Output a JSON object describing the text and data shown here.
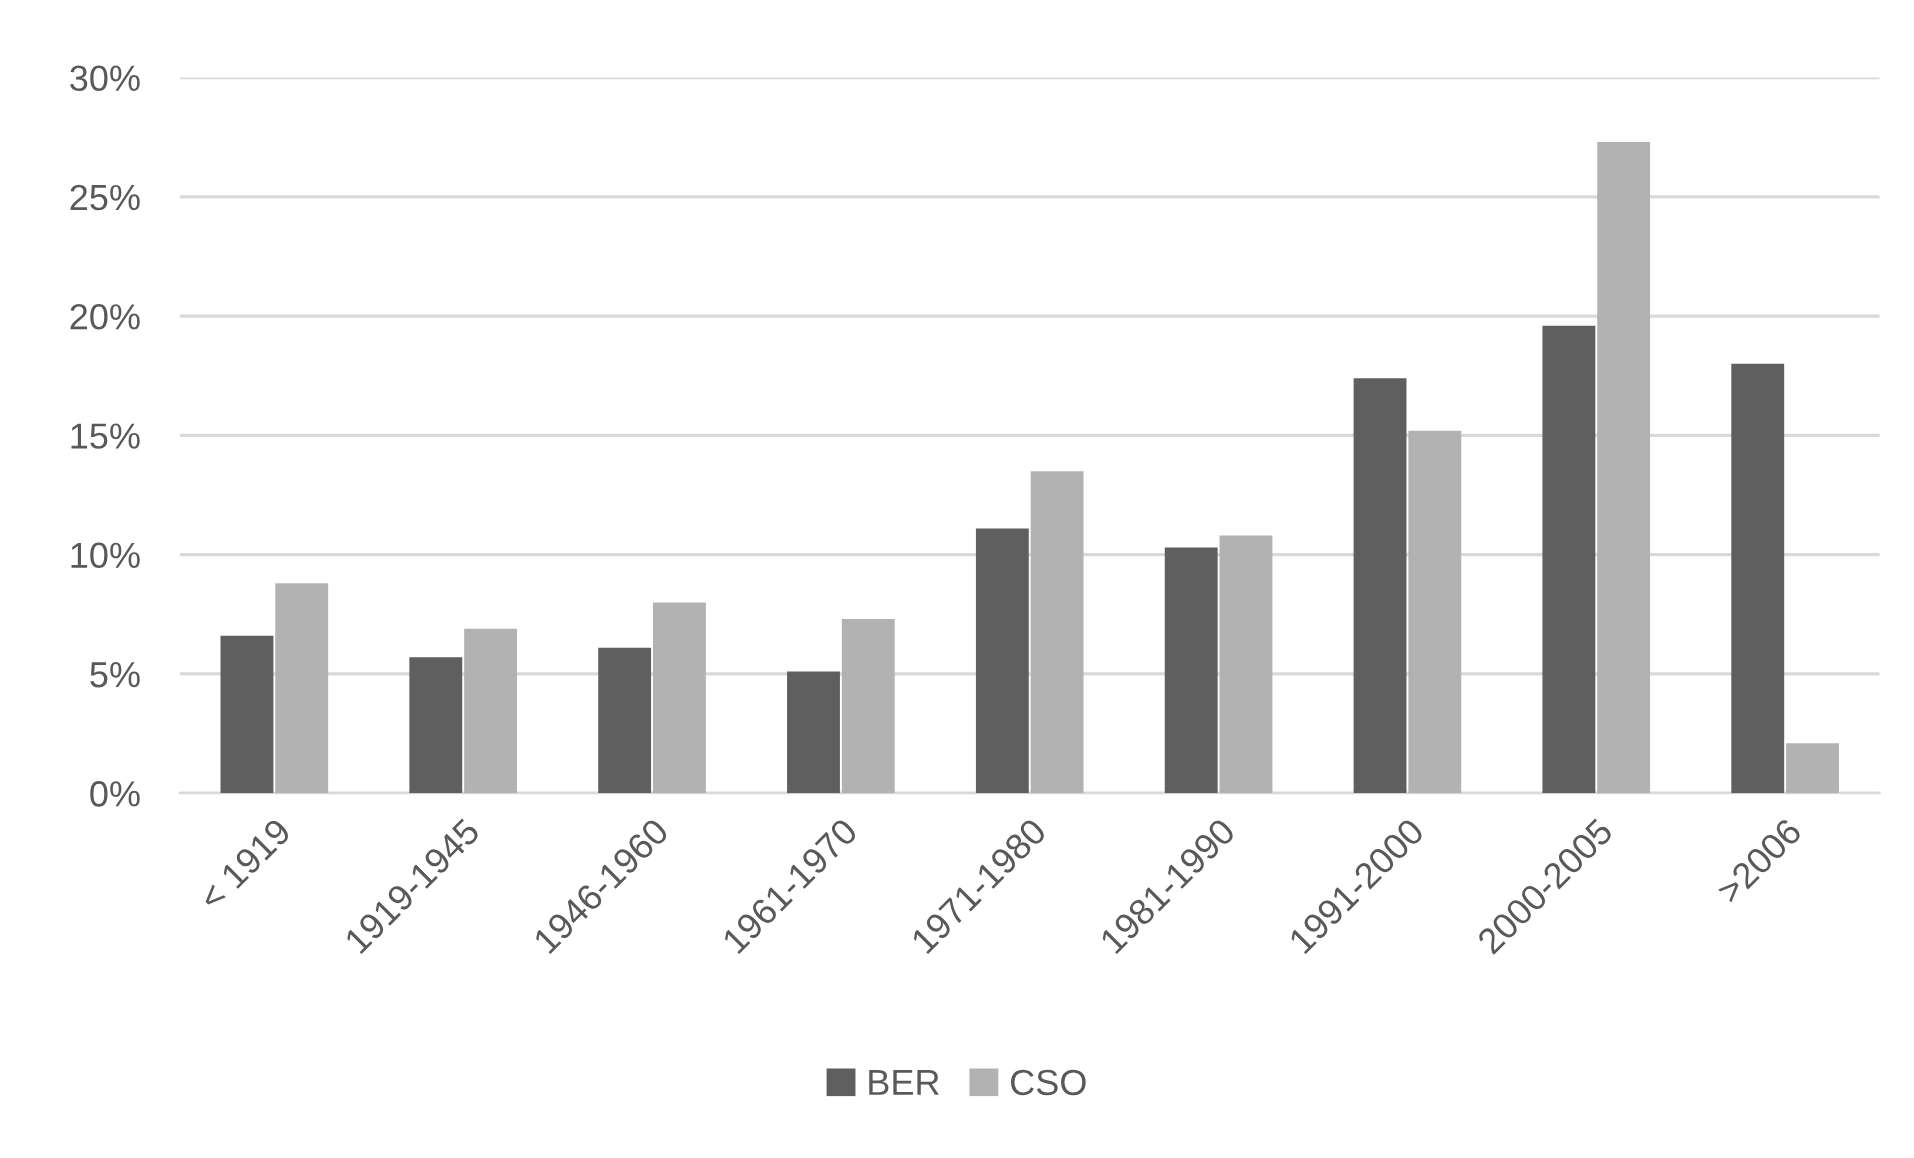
{
  "chart_data": {
    "type": "bar",
    "categories": [
      "< 1919",
      "1919-1945",
      "1946-1960",
      "1961-1970",
      "1971-1980",
      "1981-1990",
      "1991-2000",
      "2000-2005",
      ">2006"
    ],
    "series": [
      {
        "name": "BER",
        "color": "#5f5f5f",
        "values": [
          6.6,
          5.7,
          6.1,
          5.1,
          11.1,
          10.3,
          17.4,
          19.6,
          18.0
        ]
      },
      {
        "name": "CSO",
        "color": "#b2b2b2",
        "values": [
          8.8,
          6.9,
          8.0,
          7.3,
          13.5,
          10.8,
          15.2,
          27.3,
          2.1
        ]
      }
    ],
    "ylim": [
      0,
      30
    ],
    "yticks": [
      {
        "value": 0,
        "label": "0%"
      },
      {
        "value": 5,
        "label": "5%"
      },
      {
        "value": 10,
        "label": "10%"
      },
      {
        "value": 15,
        "label": "15%"
      },
      {
        "value": 20,
        "label": "20%"
      },
      {
        "value": 25,
        "label": "25%"
      },
      {
        "value": 30,
        "label": "30%"
      }
    ],
    "grid": "y",
    "legend": "bottom"
  }
}
